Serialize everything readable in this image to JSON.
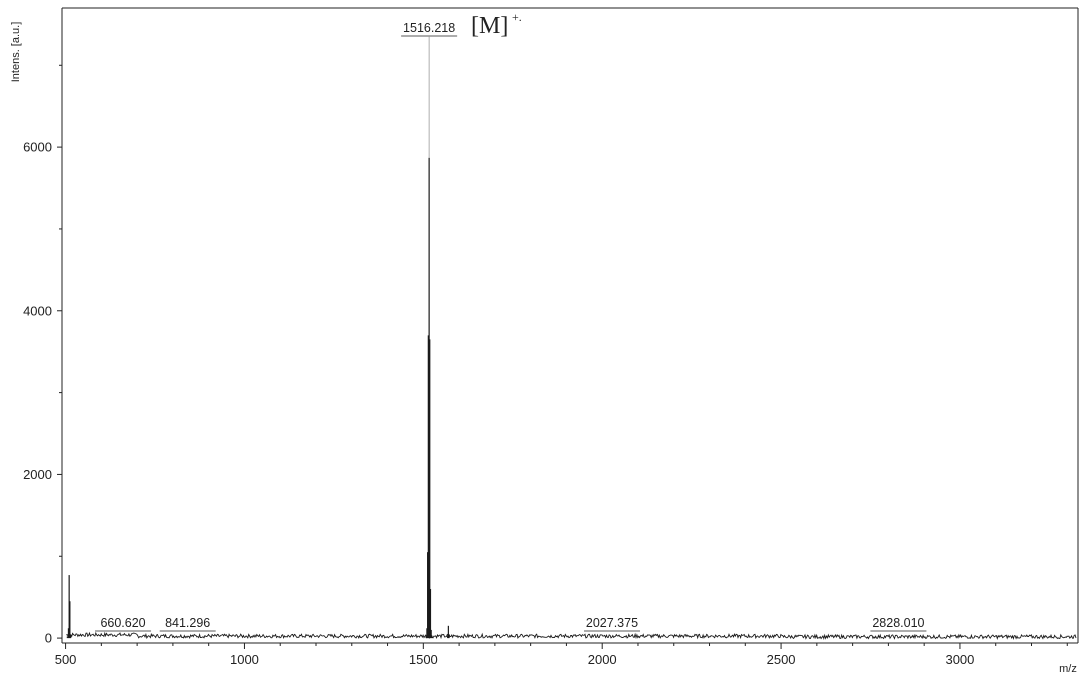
{
  "chart_data": {
    "type": "line",
    "xlabel": "m/z",
    "ylabel": "Intens. [a.u.]",
    "xlim": [
      490,
      3330
    ],
    "ylim": [
      -60,
      7700
    ],
    "xticks": [
      "500",
      "1000",
      "1500",
      "2000",
      "2500",
      "3000"
    ],
    "yticks": [
      "0",
      "2000",
      "4000",
      "6000"
    ],
    "grid": false,
    "series": [
      {
        "x": [
          505,
          508,
          510,
          512,
          514,
          1508,
          1510,
          1512,
          1514,
          1516.218,
          1518,
          1520,
          1522,
          1524,
          1568,
          1570,
          1572
        ],
        "values": [
          20,
          120,
          770,
          450,
          40,
          30,
          120,
          1050,
          3700,
          5870,
          3650,
          600,
          100,
          30,
          30,
          150,
          30
        ]
      }
    ],
    "peak_labels": [
      {
        "mz": 660.62,
        "text": "660.620"
      },
      {
        "mz": 841.296,
        "text": "841.296"
      },
      {
        "mz": 1516.218,
        "text": "1516.218"
      },
      {
        "mz": 2027.375,
        "text": "2027.375"
      },
      {
        "mz": 2828.01,
        "text": "2828.010"
      }
    ],
    "annotation": {
      "text": "[M]",
      "superscript": "+."
    }
  },
  "colors": {
    "spectrum": "#1a1a1a",
    "axis": "#222222",
    "guide": "#999999"
  }
}
